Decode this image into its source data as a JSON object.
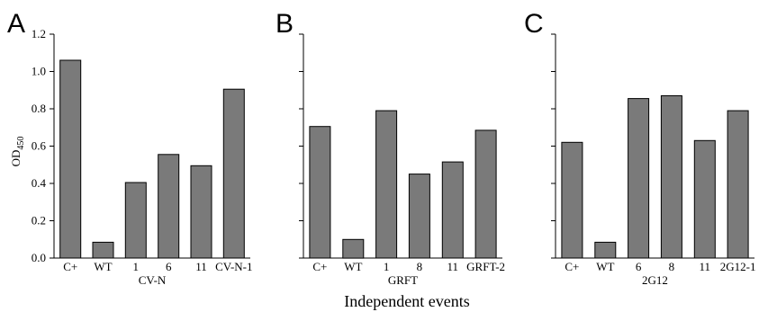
{
  "figure": {
    "shared_xlabel": "Independent events",
    "ylabel_main": "OD",
    "ylabel_sub": "450",
    "bar_color": "#7a7a7a"
  },
  "chart_data": [
    {
      "type": "bar",
      "panel": "A",
      "categories": [
        "C+",
        "WT",
        "1",
        "6",
        "11",
        "CV-N-1"
      ],
      "values": [
        1.06,
        0.085,
        0.405,
        0.555,
        0.495,
        0.905
      ],
      "xlabel": "CV-N",
      "ylabel": "OD450",
      "ylim": [
        0,
        1.2
      ],
      "yticks": [
        0,
        0.2,
        0.4,
        0.6,
        0.8,
        1.0,
        1.2
      ],
      "ytick_labels": [
        "0.0",
        "0.2",
        "0.4",
        "0.6",
        "0.8",
        "1.0",
        "1.2"
      ]
    },
    {
      "type": "bar",
      "panel": "B",
      "categories": [
        "C+",
        "WT",
        "1",
        "8",
        "11",
        "GRFT-2"
      ],
      "values": [
        0.705,
        0.1,
        0.79,
        0.45,
        0.515,
        0.685
      ],
      "xlabel": "GRFT",
      "ylim": [
        0,
        1.2
      ],
      "yticks": [
        0,
        0.2,
        0.4,
        0.6,
        0.8,
        1.0,
        1.2
      ]
    },
    {
      "type": "bar",
      "panel": "C",
      "categories": [
        "C+",
        "WT",
        "6",
        "8",
        "11",
        "2G12-1"
      ],
      "values": [
        0.62,
        0.085,
        0.855,
        0.87,
        0.63,
        0.79
      ],
      "xlabel": "2G12",
      "ylim": [
        0,
        1.2
      ],
      "yticks": [
        0,
        0.2,
        0.4,
        0.6,
        0.8,
        1.0,
        1.2
      ]
    }
  ]
}
